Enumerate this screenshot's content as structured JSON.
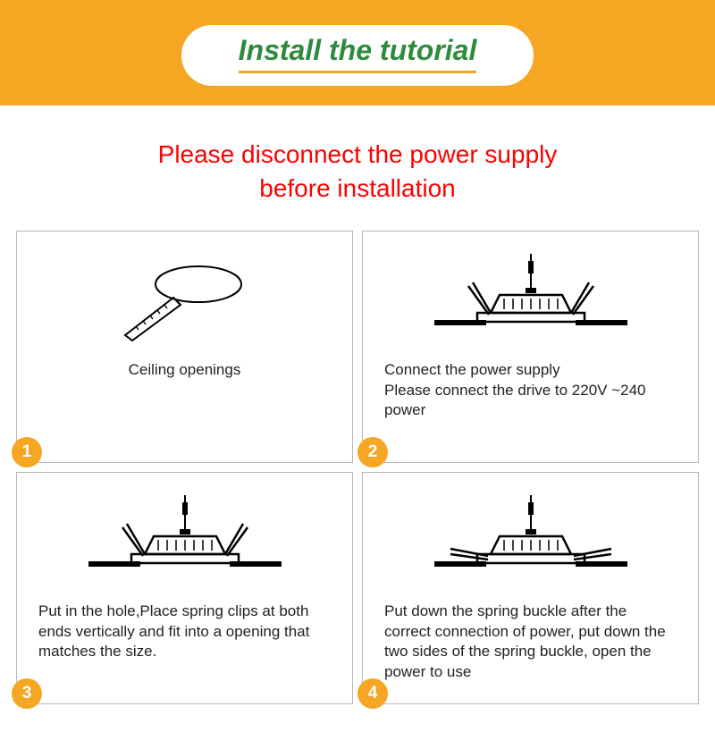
{
  "header": {
    "title": "Install the tutorial",
    "band_color": "#f5a623",
    "title_color": "#2e8b3d",
    "pill_bg": "#ffffff",
    "underline_color": "#f5a623"
  },
  "warning": {
    "line1": "Please disconnect the power supply",
    "line2": "before installation",
    "color": "#ff0000"
  },
  "steps": [
    {
      "num": "1",
      "caption": "Ceiling openings",
      "align": "center",
      "diagram": "hole-saw"
    },
    {
      "num": "2",
      "caption": "Connect the power supply\nPlease connect the drive to 220V ~240 power",
      "align": "left",
      "diagram": "light-clips-up"
    },
    {
      "num": "3",
      "caption": "Put in the hole,Place spring clips at both ends vertically and fit into a opening that matches the size.",
      "align": "left",
      "diagram": "light-clips-up"
    },
    {
      "num": "4",
      "caption": "Put down the spring buckle after the correct connection of power, put down the two sides of  the spring buckle, open the power to use",
      "align": "left",
      "diagram": "light-clips-down"
    }
  ],
  "badge_bg": "#f5a623",
  "badge_fg": "#ffffff",
  "border_color": "#b8b8b8"
}
